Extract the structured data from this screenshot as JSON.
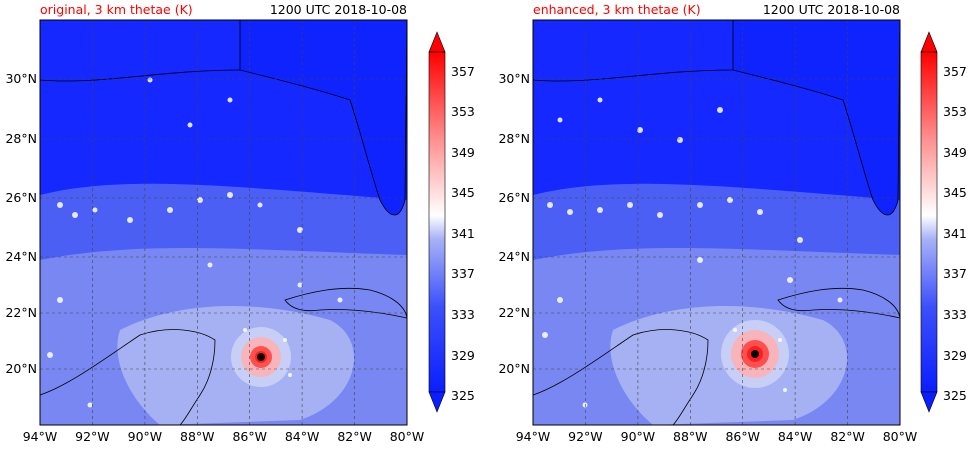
{
  "chart_data": [
    {
      "type": "heatmap",
      "title": "original, 3 km thetae (K)",
      "right_title": "1200 UTC 2018-10-08",
      "x_ticks": [
        "94°W",
        "92°W",
        "90°W",
        "88°W",
        "86°W",
        "84°W",
        "82°W",
        "80°W"
      ],
      "y_ticks": [
        "20°N",
        "22°N",
        "24°N",
        "26°N",
        "28°N",
        "30°N"
      ],
      "xlim": [
        -94,
        -80
      ],
      "ylim": [
        18.2,
        32
      ],
      "grid": true,
      "storm_center": {
        "lon": -85.7,
        "lat": 20.4
      },
      "colorbar_ticks": [
        "325",
        "329",
        "333",
        "337",
        "341",
        "345",
        "349",
        "353",
        "357"
      ],
      "colorbar_range": [
        325,
        359
      ],
      "colorbar_extend": "both"
    },
    {
      "type": "heatmap",
      "title": "enhanced, 3 km thetae (K)",
      "right_title": "1200 UTC 2018-10-08",
      "x_ticks": [
        "94°W",
        "92°W",
        "90°W",
        "88°W",
        "86°W",
        "84°W",
        "82°W",
        "80°W"
      ],
      "y_ticks": [
        "20°N",
        "22°N",
        "24°N",
        "26°N",
        "28°N",
        "30°N"
      ],
      "xlim": [
        -94,
        -80
      ],
      "ylim": [
        18.2,
        32
      ],
      "grid": true,
      "storm_center": {
        "lon": -85.5,
        "lat": 20.5
      },
      "colorbar_ticks": [
        "325",
        "329",
        "333",
        "337",
        "341",
        "345",
        "349",
        "353",
        "357"
      ],
      "colorbar_range": [
        325,
        359
      ],
      "colorbar_extend": "both"
    }
  ],
  "colors": {
    "deep_blue": "#0a1eff",
    "mid_blue": "#5a6ef0",
    "light_blue": "#b4bcf4",
    "white": "#ffffff",
    "red": "#ff0000",
    "title_red": "#ff0000"
  }
}
